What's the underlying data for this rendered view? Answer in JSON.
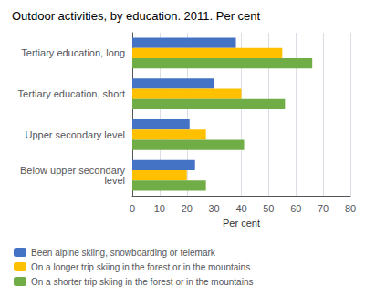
{
  "chart_data": {
    "type": "bar",
    "orientation": "horizontal",
    "title": "Outdoor activities, by education. 2011. Per cent",
    "categories": [
      "Below upper secondary\nlevel",
      "Upper secondary level",
      "Tertiary education, short",
      "Tertiary education, long"
    ],
    "series": [
      {
        "name": "Been alpine skiing, snowboarding or telemark",
        "color": "#4472C4",
        "values": [
          23,
          21,
          30,
          38
        ]
      },
      {
        "name": "On a longer trip skiing in the forest or in the mountains",
        "color": "#FFC000",
        "values": [
          20,
          27,
          40,
          55
        ]
      },
      {
        "name": "On a shorter trip skiing in the forest or in the mountains",
        "color": "#70AD47",
        "values": [
          27,
          41,
          56,
          66
        ]
      }
    ],
    "xlabel": "Per cent",
    "xlim": [
      0,
      80
    ],
    "xticks": [
      0,
      10,
      20,
      30,
      40,
      50,
      60,
      70,
      80
    ],
    "grid": true,
    "legend": "bottom"
  }
}
